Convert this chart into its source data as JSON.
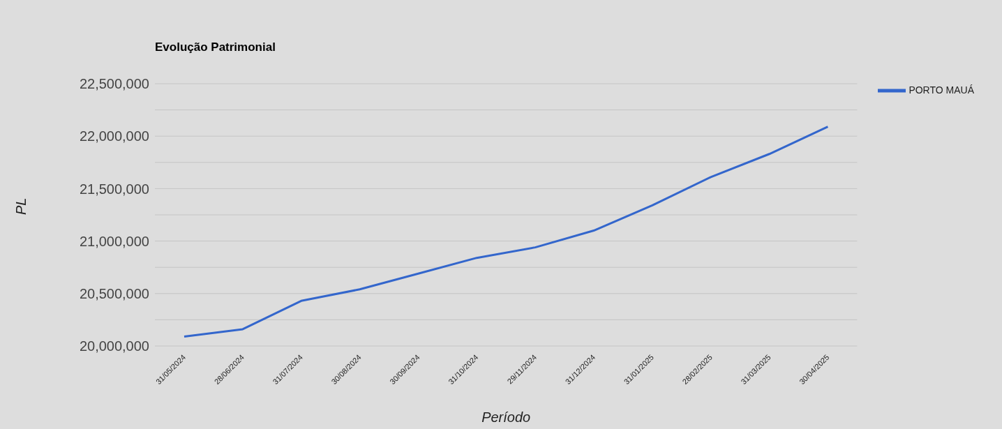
{
  "chart_data": {
    "type": "line",
    "title": "Evolução Patrimonial",
    "xlabel": "Período",
    "ylabel": "PL",
    "categories": [
      "31/05/2024",
      "28/06/2024",
      "31/07/2024",
      "30/08/2024",
      "30/09/2024",
      "31/10/2024",
      "29/11/2024",
      "31/12/2024",
      "31/01/2025",
      "28/02/2025",
      "31/03/2025",
      "30/04/2025"
    ],
    "series": [
      {
        "name": "PORTO MAUÁ",
        "color": "#3366cc",
        "values": [
          20090000,
          20160000,
          20430000,
          20540000,
          20690000,
          20840000,
          20940000,
          21100000,
          21340000,
          21610000,
          21830000,
          22090000
        ]
      }
    ],
    "ylim": [
      20000000,
      22500000
    ],
    "yticks": [
      {
        "value": 20000000,
        "label": "20,000,000"
      },
      {
        "value": 20250000,
        "label": null
      },
      {
        "value": 20500000,
        "label": "20,500,000"
      },
      {
        "value": 20750000,
        "label": null
      },
      {
        "value": 21000000,
        "label": "21,000,000"
      },
      {
        "value": 21250000,
        "label": null
      },
      {
        "value": 21500000,
        "label": "21,500,000"
      },
      {
        "value": 21750000,
        "label": null
      },
      {
        "value": 22000000,
        "label": "22,000,000"
      },
      {
        "value": 22250000,
        "label": null
      },
      {
        "value": 22500000,
        "label": "22,500,000"
      }
    ],
    "grid": "y",
    "legend": "top right",
    "marker": "none",
    "line_style": "solid"
  }
}
